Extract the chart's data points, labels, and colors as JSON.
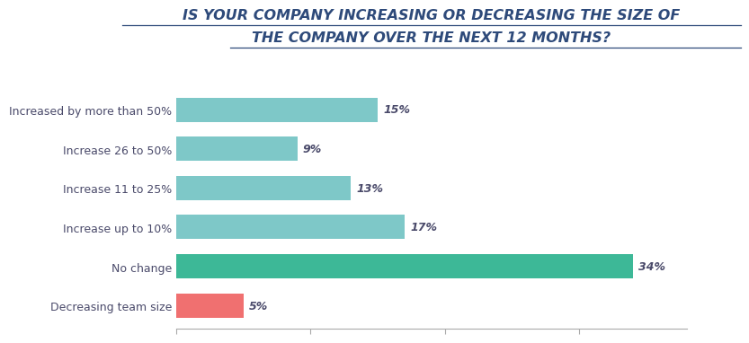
{
  "title_line1": "IS YOUR COMPANY INCREASING OR DECREASING THE SIZE OF",
  "title_line2": "THE COMPANY OVER THE NEXT 12 MONTHS?",
  "categories": [
    "Increased by more than 50%",
    "Increase 26 to 50%",
    "Increase 11 to 25%",
    "Increase up to 10%",
    "No change",
    "Decreasing team size"
  ],
  "values": [
    15,
    9,
    13,
    17,
    34,
    5
  ],
  "bar_colors": [
    "#7ec8c8",
    "#7ec8c8",
    "#7ec8c8",
    "#7ec8c8",
    "#3db897",
    "#f07070"
  ],
  "label_color": "#4a4a6a",
  "value_label_color": "#4a4a6a",
  "background_color": "#ffffff",
  "title_color": "#2e4a7a",
  "xlim": [
    0,
    38
  ],
  "bar_height": 0.62,
  "title_fontsize": 11.5,
  "label_fontsize": 9,
  "value_fontsize": 9
}
